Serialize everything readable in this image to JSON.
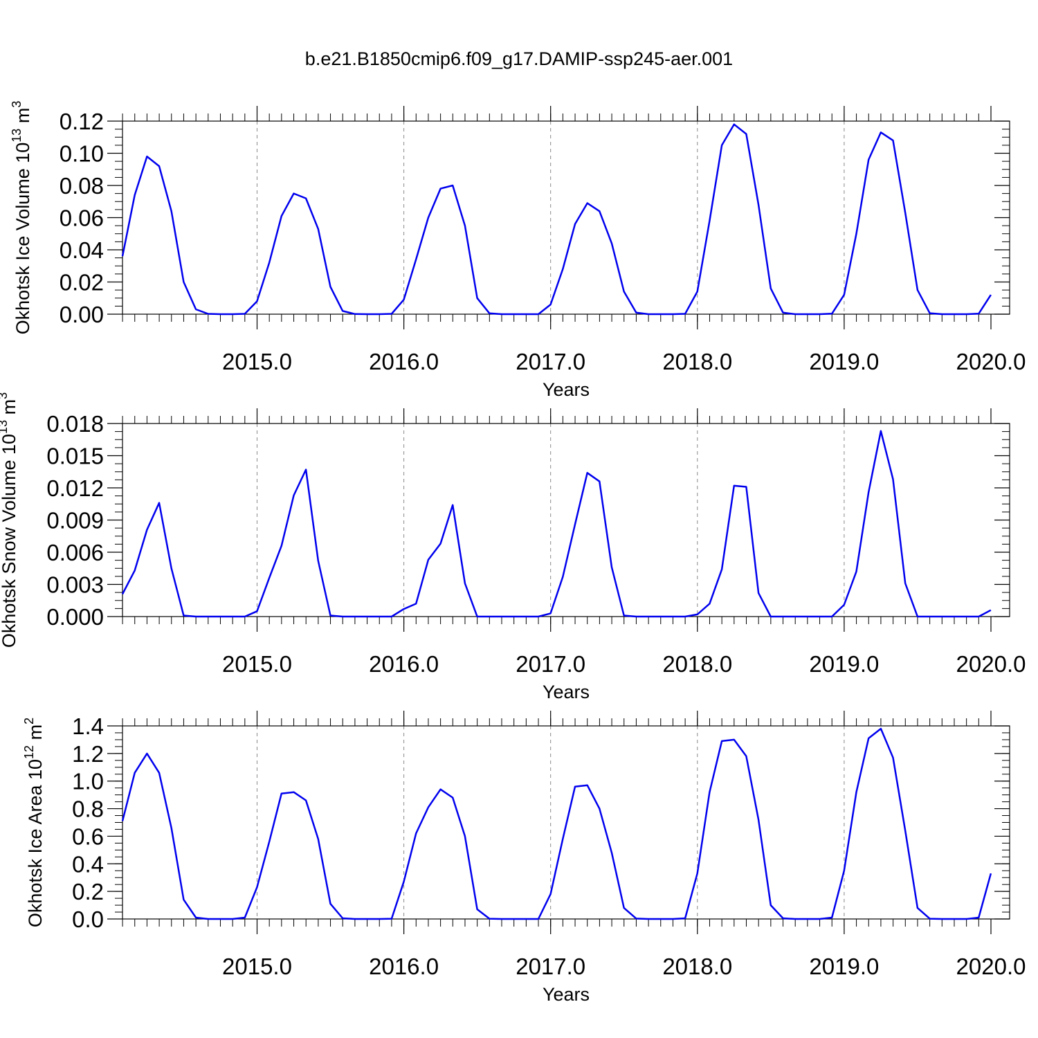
{
  "title": "b.e21.B1850cmip6.f09_g17.DAMIP-ssp245-aer.001",
  "colors": {
    "series": "#0000ee",
    "axis": "#000000",
    "grid": "#888888"
  },
  "chart_data": [
    {
      "type": "line",
      "title": "",
      "xlabel": "Years",
      "ylabel": "Okhotsk Ice Volume 10",
      "ylabel_exponent": "13",
      "ylabel_unit": " m",
      "ylabel_unit_exponent": "3",
      "xlim": [
        2014.083,
        2020.0
      ],
      "ylim": [
        0.0,
        0.12
      ],
      "yticks": [
        "0.00",
        "0.02",
        "0.04",
        "0.06",
        "0.08",
        "0.10",
        "0.12"
      ],
      "yminor_step": 0.005,
      "xticks": [
        "2015.0",
        "2016.0",
        "2017.0",
        "2018.0",
        "2019.0",
        "2020.0"
      ],
      "grid": "vertical dashed at years",
      "series": [
        {
          "x_start": 2014.083,
          "x_step": 0.0833333,
          "values": [
            0.036,
            0.074,
            0.098,
            0.092,
            0.064,
            0.02,
            0.003,
            0.0002,
            0.0,
            0.0,
            0.0002,
            0.008,
            0.032,
            0.061,
            0.075,
            0.072,
            0.053,
            0.017,
            0.002,
            0.0001,
            0.0,
            0.0,
            0.0002,
            0.009,
            0.034,
            0.06,
            0.078,
            0.08,
            0.055,
            0.01,
            0.0005,
            0.0,
            0.0,
            0.0,
            0.0,
            0.006,
            0.028,
            0.056,
            0.069,
            0.064,
            0.044,
            0.014,
            0.001,
            0.0,
            0.0,
            0.0,
            0.0002,
            0.014,
            0.058,
            0.105,
            0.118,
            0.112,
            0.068,
            0.016,
            0.001,
            0.0,
            0.0,
            0.0,
            0.0003,
            0.012,
            0.05,
            0.096,
            0.113,
            0.108,
            0.063,
            0.015,
            0.0006,
            0.0,
            0.0,
            0.0,
            0.0003,
            0.012
          ]
        }
      ]
    },
    {
      "type": "line",
      "title": "",
      "xlabel": "Years",
      "ylabel": "Okhotsk Snow Volume 10",
      "ylabel_exponent": "13",
      "ylabel_unit": " m",
      "ylabel_unit_exponent": "3",
      "xlim": [
        2014.083,
        2020.0
      ],
      "ylim": [
        0.0,
        0.018
      ],
      "yticks": [
        "0.000",
        "0.003",
        "0.006",
        "0.009",
        "0.012",
        "0.015",
        "0.018"
      ],
      "yminor_step": 0.00075,
      "xticks": [
        "2015.0",
        "2016.0",
        "2017.0",
        "2018.0",
        "2019.0",
        "2020.0"
      ],
      "grid": "vertical dashed at years",
      "series": [
        {
          "x_start": 2014.083,
          "x_step": 0.0833333,
          "values": [
            0.0021,
            0.0043,
            0.0081,
            0.0106,
            0.0045,
            0.0001,
            0.0,
            0.0,
            0.0,
            0.0,
            0.0,
            0.0005,
            0.0036,
            0.0066,
            0.0113,
            0.0137,
            0.0052,
            0.0001,
            0.0,
            0.0,
            0.0,
            0.0,
            0.0,
            0.0007,
            0.0012,
            0.0053,
            0.0068,
            0.0104,
            0.0031,
            0.0,
            0.0,
            0.0,
            0.0,
            0.0,
            0.0,
            0.0003,
            0.0037,
            0.0086,
            0.0134,
            0.0126,
            0.0046,
            0.0001,
            0.0,
            0.0,
            0.0,
            0.0,
            0.0,
            0.0002,
            0.0012,
            0.0044,
            0.0122,
            0.0121,
            0.0022,
            0.0,
            0.0,
            0.0,
            0.0,
            0.0,
            0.0,
            0.0011,
            0.0042,
            0.0116,
            0.0173,
            0.0128,
            0.0031,
            0.0,
            0.0,
            0.0,
            0.0,
            0.0,
            0.0,
            0.0006
          ]
        }
      ]
    },
    {
      "type": "line",
      "title": "",
      "xlabel": "Years",
      "ylabel": "Okhotsk Ice Area 10",
      "ylabel_exponent": "12",
      "ylabel_unit": " m",
      "ylabel_unit_exponent": "2",
      "xlim": [
        2014.083,
        2020.0
      ],
      "ylim": [
        0.0,
        1.4
      ],
      "yticks": [
        "0.0",
        "0.2",
        "0.4",
        "0.6",
        "0.8",
        "1.0",
        "1.2",
        "1.4"
      ],
      "yminor_step": 0.05,
      "xticks": [
        "2015.0",
        "2016.0",
        "2017.0",
        "2018.0",
        "2019.0",
        "2020.0"
      ],
      "grid": "vertical dashed at years",
      "series": [
        {
          "x_start": 2014.083,
          "x_step": 0.0833333,
          "values": [
            0.71,
            1.06,
            1.2,
            1.06,
            0.66,
            0.14,
            0.01,
            0.0,
            0.0,
            0.0,
            0.01,
            0.23,
            0.56,
            0.91,
            0.92,
            0.86,
            0.58,
            0.11,
            0.005,
            0.0,
            0.0,
            0.0,
            0.002,
            0.27,
            0.62,
            0.81,
            0.94,
            0.88,
            0.6,
            0.07,
            0.002,
            0.0,
            0.0,
            0.0,
            0.0,
            0.18,
            0.58,
            0.96,
            0.97,
            0.8,
            0.48,
            0.08,
            0.003,
            0.0,
            0.0,
            0.0,
            0.005,
            0.33,
            0.92,
            1.29,
            1.3,
            1.18,
            0.72,
            0.1,
            0.005,
            0.0,
            0.0,
            0.0,
            0.01,
            0.35,
            0.92,
            1.31,
            1.38,
            1.17,
            0.64,
            0.08,
            0.002,
            0.0,
            0.0,
            0.0,
            0.01,
            0.33
          ]
        }
      ]
    }
  ]
}
